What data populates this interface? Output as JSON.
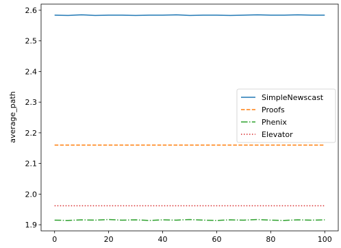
{
  "chart_data": {
    "type": "line",
    "xlabel": "",
    "ylabel": "average_path",
    "xlim": [
      -5,
      105
    ],
    "ylim": [
      1.88,
      2.62
    ],
    "xticks": [
      0,
      20,
      40,
      60,
      80,
      100
    ],
    "yticks": [
      1.9,
      2.0,
      2.1,
      2.2,
      2.3,
      2.4,
      2.5,
      2.6
    ],
    "ytick_labels": [
      "1.9",
      "2.0",
      "2.1",
      "2.2",
      "2.3",
      "2.4",
      "2.5",
      "2.6"
    ],
    "legend_position": "center-right",
    "grid": false,
    "series": [
      {
        "name": "SimpleNewscast",
        "color": "#1f77b4",
        "style": "solid",
        "x_start": 0,
        "x_step": 5,
        "values": [
          2.584,
          2.583,
          2.585,
          2.583,
          2.584,
          2.584,
          2.583,
          2.584,
          2.584,
          2.585,
          2.583,
          2.584,
          2.584,
          2.583,
          2.584,
          2.585,
          2.584,
          2.584,
          2.585,
          2.584,
          2.584
        ]
      },
      {
        "name": "Proofs",
        "color": "#ff7f0e",
        "style": "dashed",
        "x_start": 0,
        "x_step": 5,
        "values": [
          2.16,
          2.16,
          2.16,
          2.16,
          2.16,
          2.16,
          2.16,
          2.16,
          2.16,
          2.16,
          2.16,
          2.16,
          2.16,
          2.16,
          2.16,
          2.16,
          2.16,
          2.16,
          2.16,
          2.16,
          2.16
        ]
      },
      {
        "name": "Phenix",
        "color": "#2ca02c",
        "style": "dashdot",
        "x_start": 0,
        "x_step": 5,
        "values": [
          1.915,
          1.914,
          1.916,
          1.915,
          1.917,
          1.915,
          1.916,
          1.914,
          1.916,
          1.915,
          1.917,
          1.915,
          1.914,
          1.916,
          1.915,
          1.917,
          1.915,
          1.914,
          1.916,
          1.915,
          1.916
        ]
      },
      {
        "name": "Elevator",
        "color": "#d62728",
        "style": "dotted",
        "x_start": 0,
        "x_step": 5,
        "values": [
          1.962,
          1.962,
          1.962,
          1.962,
          1.962,
          1.962,
          1.962,
          1.962,
          1.962,
          1.962,
          1.962,
          1.962,
          1.962,
          1.962,
          1.962,
          1.962,
          1.962,
          1.962,
          1.962,
          1.962,
          1.962
        ]
      }
    ]
  }
}
